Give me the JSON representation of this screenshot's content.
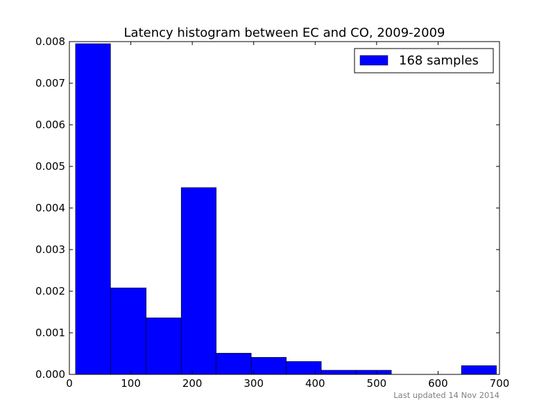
{
  "chart_data": {
    "type": "bar",
    "title": "Latency histogram between EC and CO, 2009-2009",
    "xlabel": "",
    "ylabel": "",
    "xlim": [
      0,
      700
    ],
    "ylim": [
      0,
      0.008
    ],
    "x_ticks": [
      0,
      100,
      200,
      300,
      400,
      500,
      600,
      700
    ],
    "x_tick_labels": [
      "0",
      "100",
      "200",
      "300",
      "400",
      "500",
      "600",
      "700"
    ],
    "y_ticks": [
      0,
      0.001,
      0.002,
      0.003,
      0.004,
      0.005,
      0.006,
      0.007,
      0.008
    ],
    "y_tick_labels": [
      "0.000",
      "0.001",
      "0.002",
      "0.003",
      "0.004",
      "0.005",
      "0.006",
      "0.007",
      "0.008"
    ],
    "grid": false,
    "legend_position": "top-right",
    "bar_color": "#0000ff",
    "series": [
      {
        "name": "168 samples",
        "bins": [
          {
            "start": 10,
            "end": 67,
            "value": 0.00795
          },
          {
            "start": 67,
            "end": 125,
            "value": 0.00208
          },
          {
            "start": 125,
            "end": 182,
            "value": 0.00136
          },
          {
            "start": 182,
            "end": 239,
            "value": 0.00449
          },
          {
            "start": 239,
            "end": 296,
            "value": 0.00051
          },
          {
            "start": 296,
            "end": 353,
            "value": 0.00041
          },
          {
            "start": 353,
            "end": 410,
            "value": 0.00031
          },
          {
            "start": 410,
            "end": 467,
            "value": 0.0001
          },
          {
            "start": 467,
            "end": 524,
            "value": 0.0001
          },
          {
            "start": 524,
            "end": 581,
            "value": 0
          },
          {
            "start": 581,
            "end": 638,
            "value": 0
          },
          {
            "start": 638,
            "end": 695,
            "value": 0.00021
          }
        ]
      }
    ]
  },
  "footer": {
    "updated_text": "Last updated 14 Nov 2014"
  }
}
